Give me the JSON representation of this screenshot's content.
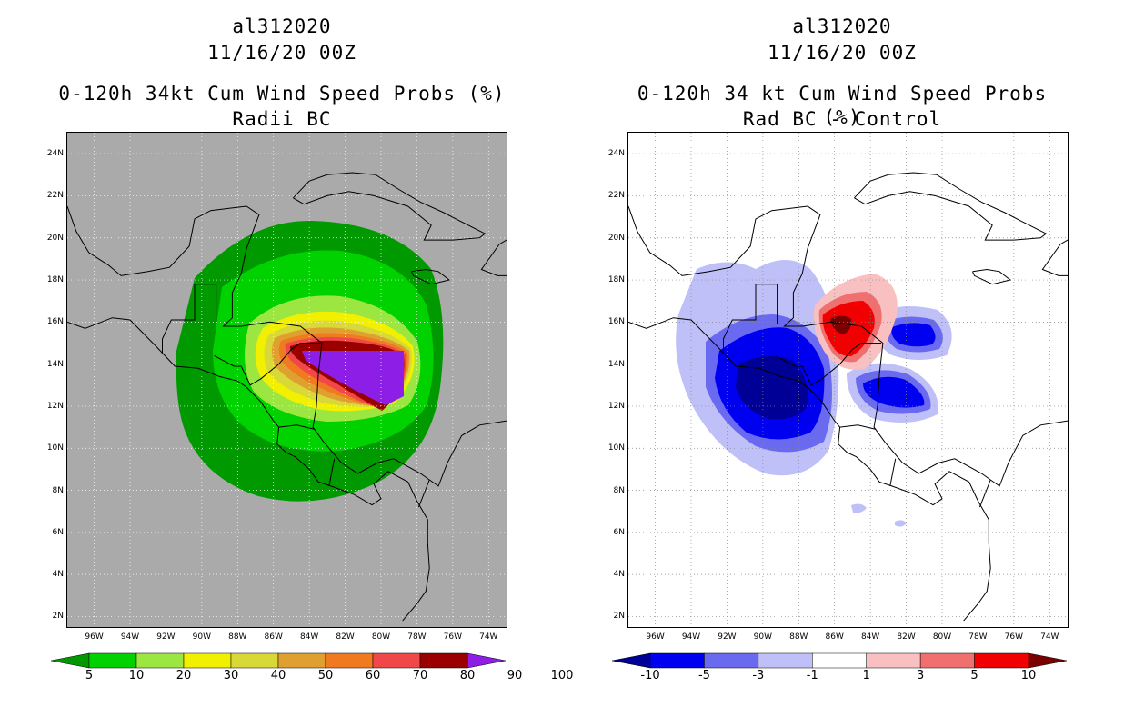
{
  "left": {
    "storm": "al312020",
    "date": "11/16/20 00Z",
    "title": "0-120h 34kt Cum Wind Speed Probs (%)",
    "subtitle": "Radii BC",
    "colorbar_labels": [
      "5",
      "10",
      "20",
      "30",
      "40",
      "50",
      "60",
      "70",
      "80",
      "90",
      "100"
    ],
    "colorbar_colors": [
      "#009a00",
      "#00d200",
      "#9be640",
      "#f0f000",
      "#d8d838",
      "#e0a030",
      "#f07a20",
      "#f04848",
      "#9a0000",
      "#8c1ee6"
    ]
  },
  "right": {
    "storm": "al312020",
    "date": "11/16/20 00Z",
    "title": "0-120h 34 kt Cum Wind Speed Probs (%)",
    "subtitle": "Rad BC - Control",
    "colorbar_labels": [
      "-10",
      "-5",
      "-3",
      "-1",
      "1",
      "3",
      "5",
      "10"
    ],
    "colorbar_colors": [
      "#000096",
      "#0000f0",
      "#6a6af0",
      "#c0c0f8",
      "#ffffff",
      "#f8c0c0",
      "#f07070",
      "#f00000",
      "#7a0000"
    ]
  },
  "lon_ticks": [
    "96W",
    "94W",
    "92W",
    "90W",
    "88W",
    "86W",
    "84W",
    "82W",
    "80W",
    "78W",
    "76W",
    "74W"
  ],
  "lat_ticks": [
    "24N",
    "22N",
    "20N",
    "18N",
    "16N",
    "14N",
    "12N",
    "10N",
    "8N",
    "6N",
    "4N",
    "2N"
  ],
  "map_extent": {
    "lon_min": -97.5,
    "lon_max": -73.0,
    "lat_min": 1.5,
    "lat_max": 25.0
  }
}
